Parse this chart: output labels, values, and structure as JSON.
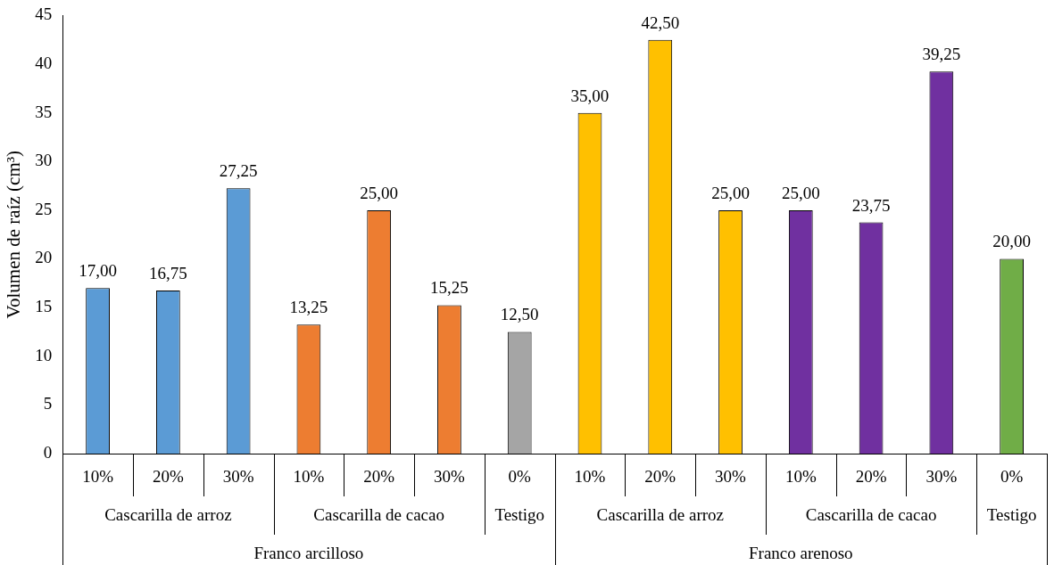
{
  "chart_data": {
    "type": "bar",
    "ylabel": "Volumen de raíz (cm³)",
    "categories": [
      "10%",
      "20%",
      "30%",
      "10%",
      "20%",
      "30%",
      "0%",
      "10%",
      "20%",
      "30%",
      "10%",
      "20%",
      "30%",
      "0%"
    ],
    "values": [
      17,
      16.75,
      27.25,
      13.25,
      25,
      15.25,
      12.5,
      35,
      42.5,
      25,
      25,
      23.75,
      39.25,
      20
    ],
    "value_labels": [
      "17,00",
      "16,75",
      "27,25",
      "13,25",
      "25,00",
      "15,25",
      "12,50",
      "35,00",
      "42,50",
      "25,00",
      "25,00",
      "23,75",
      "39,25",
      "20,00"
    ],
    "colors": [
      "#5b9bd5",
      "#5b9bd5",
      "#5b9bd5",
      "#ed7d31",
      "#ed7d31",
      "#ed7d31",
      "#a5a5a5",
      "#ffc000",
      "#ffc000",
      "#ffc000",
      "#7030a0",
      "#7030a0",
      "#7030a0",
      "#70ad47"
    ],
    "ylim": [
      0,
      45
    ],
    "yticks": [
      0,
      5,
      10,
      15,
      20,
      25,
      30,
      35,
      40,
      45
    ],
    "grid": false,
    "legend": false,
    "annotations": [
      "Cascarilla de arroz",
      "Cascarilla de cacao",
      "Testigo",
      "Cascarilla de arroz",
      "Cascarilla de cacao",
      "Testigo",
      "Franco arcilloso",
      "Franco arenoso"
    ]
  }
}
